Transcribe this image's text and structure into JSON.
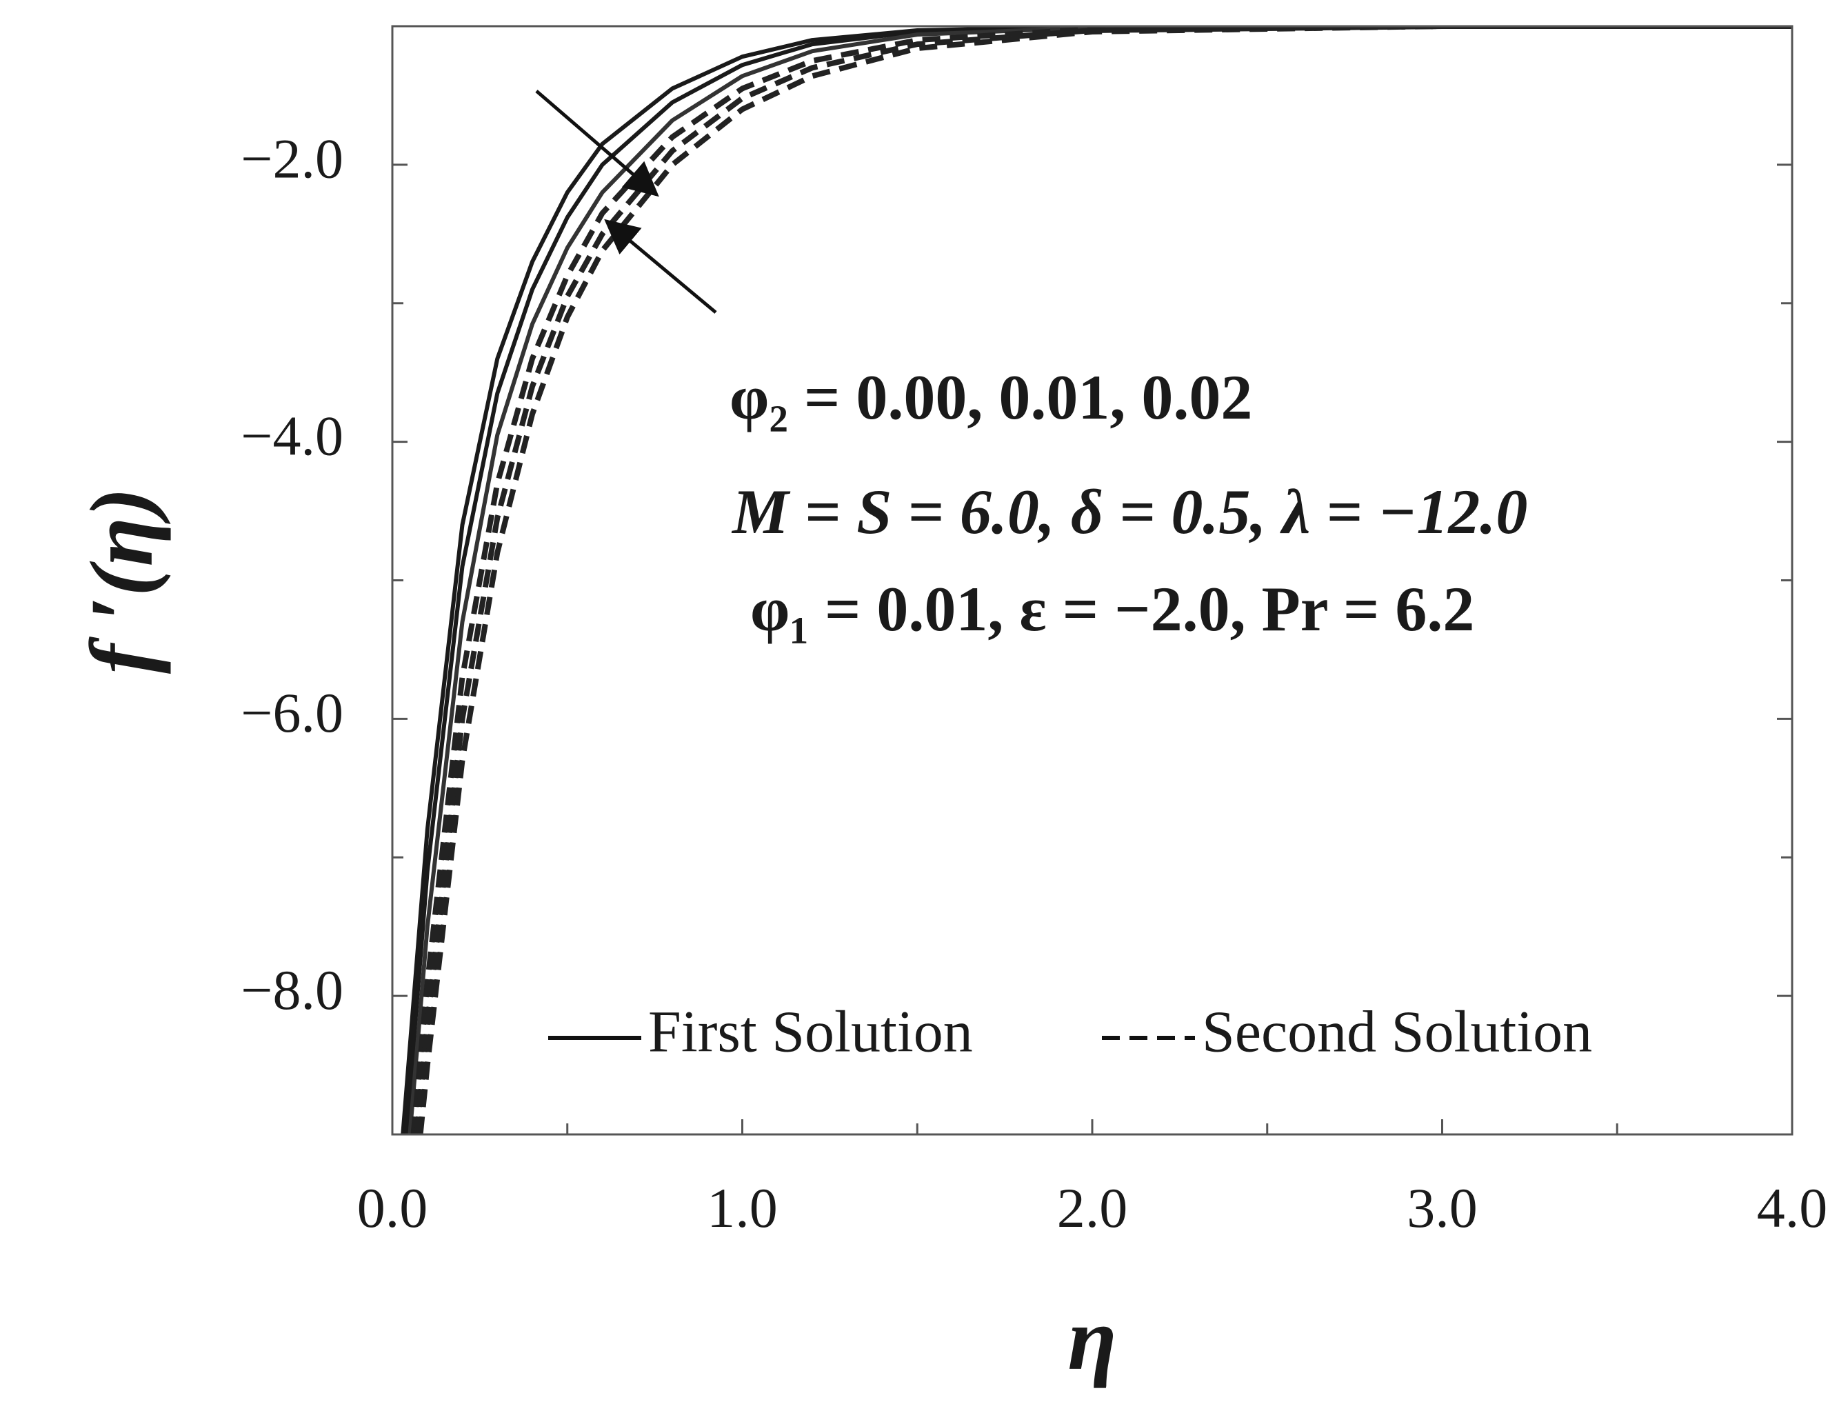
{
  "chart_data": {
    "type": "line",
    "xlabel": "η",
    "ylabel": "f ′(η)",
    "xlim": [
      0,
      4
    ],
    "ylim": [
      -9,
      -1
    ],
    "xticks": [
      {
        "value": 0,
        "label": "0.0"
      },
      {
        "value": 1,
        "label": "1.0"
      },
      {
        "value": 2,
        "label": "2.0"
      },
      {
        "value": 3,
        "label": "3.0"
      },
      {
        "value": 4,
        "label": "4.0"
      }
    ],
    "xminor_ticks": [
      0.5,
      1.5,
      2.5,
      3.5
    ],
    "yticks": [
      {
        "value": -2,
        "label": "−2.0"
      },
      {
        "value": -4,
        "label": "−4.0"
      },
      {
        "value": -6,
        "label": "−6.0"
      },
      {
        "value": -8,
        "label": "−8.0"
      }
    ],
    "yminor_ticks": [
      -3,
      -5,
      -7
    ],
    "annotations": [
      "φ₂ = 0.00, 0.01, 0.02",
      "M = S = 6.0, δ = 0.5, λ = −12.0",
      "φ₁ = 0.01, ε = −2.0, Pr = 6.2"
    ],
    "legend": [
      {
        "label": "First Solution",
        "dash": "solid"
      },
      {
        "label": "Second Solution",
        "dash": "dashed"
      }
    ],
    "series": [
      {
        "dash": "solid",
        "color": "#1a1a1a",
        "x": [
          0.03,
          0.1,
          0.2,
          0.3,
          0.4,
          0.5,
          0.6,
          0.8,
          1.0,
          1.2,
          1.5,
          2.0,
          3.0,
          4.0
        ],
        "values": [
          -9,
          -6.8,
          -4.6,
          -3.4,
          -2.7,
          -2.2,
          -1.85,
          -1.45,
          -1.22,
          -1.1,
          -1.03,
          -1.005,
          -1.0,
          -1.0
        ]
      },
      {
        "dash": "solid",
        "color": "#1a1a1a",
        "x": [
          0.04,
          0.1,
          0.2,
          0.3,
          0.4,
          0.5,
          0.6,
          0.8,
          1.0,
          1.2,
          1.5,
          2.0,
          3.0,
          4.0
        ],
        "values": [
          -9,
          -7.1,
          -4.9,
          -3.65,
          -2.9,
          -2.38,
          -2.0,
          -1.55,
          -1.28,
          -1.13,
          -1.04,
          -1.01,
          -1.0,
          -1.0
        ]
      },
      {
        "dash": "solid",
        "color": "#333333",
        "x": [
          0.05,
          0.1,
          0.2,
          0.3,
          0.4,
          0.5,
          0.6,
          0.8,
          1.0,
          1.2,
          1.5,
          2.0,
          3.0,
          4.0
        ],
        "values": [
          -9,
          -7.5,
          -5.3,
          -3.95,
          -3.15,
          -2.6,
          -2.2,
          -1.68,
          -1.36,
          -1.18,
          -1.06,
          -1.01,
          -1.0,
          -1.0
        ]
      },
      {
        "dash": "dashed",
        "color": "#222222",
        "x": [
          0.06,
          0.1,
          0.2,
          0.3,
          0.4,
          0.5,
          0.6,
          0.8,
          1.0,
          1.2,
          1.5,
          2.0,
          3.0,
          4.0
        ],
        "values": [
          -9,
          -7.9,
          -5.7,
          -4.3,
          -3.4,
          -2.8,
          -2.35,
          -1.8,
          -1.45,
          -1.25,
          -1.1,
          -1.02,
          -1.0,
          -1.0
        ]
      },
      {
        "dash": "dashed",
        "color": "#222222",
        "x": [
          0.07,
          0.1,
          0.2,
          0.3,
          0.4,
          0.5,
          0.6,
          0.8,
          1.0,
          1.2,
          1.5,
          2.0,
          3.0,
          4.0
        ],
        "values": [
          -9,
          -8.2,
          -6.0,
          -4.55,
          -3.6,
          -2.95,
          -2.5,
          -1.9,
          -1.52,
          -1.3,
          -1.13,
          -1.03,
          -1.0,
          -1.0
        ]
      },
      {
        "dash": "dashed",
        "color": "#222222",
        "x": [
          0.08,
          0.1,
          0.2,
          0.3,
          0.4,
          0.5,
          0.6,
          0.8,
          1.0,
          1.2,
          1.5,
          2.0,
          3.0,
          4.0
        ],
        "values": [
          -9,
          -8.5,
          -6.3,
          -4.8,
          -3.8,
          -3.1,
          -2.62,
          -2.0,
          -1.6,
          -1.36,
          -1.16,
          -1.04,
          -1.0,
          -1.0
        ]
      }
    ]
  }
}
